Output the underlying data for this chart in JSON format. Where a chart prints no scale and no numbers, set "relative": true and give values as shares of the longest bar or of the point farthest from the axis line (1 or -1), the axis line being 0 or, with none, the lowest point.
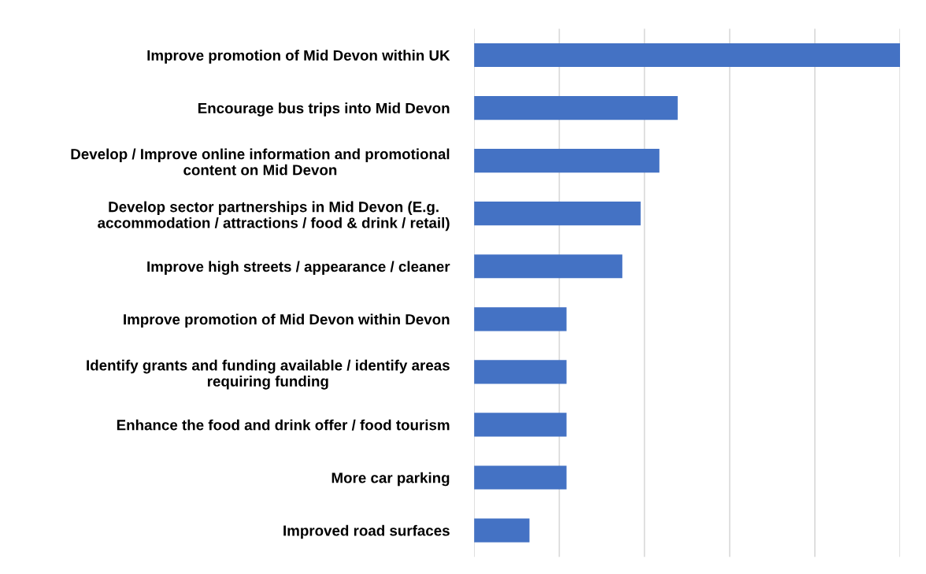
{
  "chart_data": {
    "type": "bar",
    "orientation": "horizontal",
    "relative": true,
    "categories": [
      "Improve promotion of Mid Devon within UK",
      "Encourage bus trips into Mid Devon",
      "Develop / Improve online information and promotional\ncontent on Mid Devon",
      "Develop sector partnerships in Mid Devon (E.g.\naccommodation / attractions / food & drink / retail)",
      "Improve high streets / appearance / cleaner",
      "Improve promotion of Mid Devon within Devon",
      "Identify grants and funding available / identify areas\nrequiring funding",
      "Enhance the food and drink offer / food tourism",
      "More car parking",
      "Improved road surfaces"
    ],
    "values": [
      1,
      0.478,
      0.435,
      0.391,
      0.348,
      0.217,
      0.217,
      0.217,
      0.217,
      0.13
    ],
    "color": "#4472c4",
    "grid": "x",
    "tick_labels": "y"
  }
}
